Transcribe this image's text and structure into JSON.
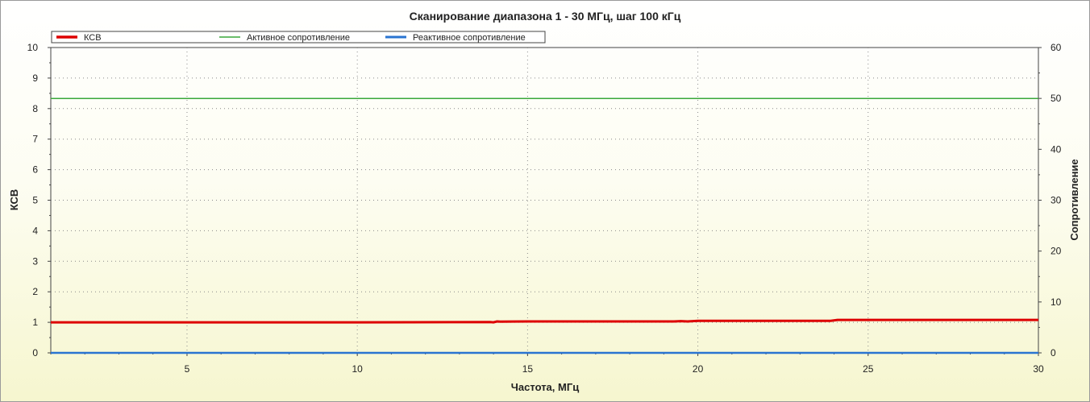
{
  "chart_data": {
    "type": "line",
    "title": "Сканирование диапазона 1 - 30 МГц, шаг 100 кГц",
    "xlabel": "Частота, МГц",
    "ylabel_left": "КСВ",
    "ylabel_right": "Сопротивление",
    "xlim": [
      1,
      30
    ],
    "ylim_left": [
      0,
      10
    ],
    "ylim_right": [
      0,
      60
    ],
    "x_ticks": [
      5,
      10,
      15,
      20,
      25,
      30
    ],
    "y_ticks_left": [
      0,
      1,
      2,
      3,
      4,
      5,
      6,
      7,
      8,
      9,
      10
    ],
    "y_ticks_right": [
      0,
      10,
      20,
      30,
      40,
      50,
      60
    ],
    "grid": true,
    "legend_position": "top",
    "series": [
      {
        "name": "КСВ",
        "axis": "left",
        "color": "#dd0000",
        "x": [
          1,
          5,
          10,
          13.9,
          14.0,
          14.1,
          14.2,
          15,
          19.3,
          19.5,
          19.7,
          20,
          23.9,
          24.1,
          25,
          30
        ],
        "y": [
          1.0,
          1.0,
          1.0,
          1.01,
          1.0,
          1.03,
          1.02,
          1.03,
          1.03,
          1.04,
          1.03,
          1.05,
          1.05,
          1.08,
          1.08,
          1.08
        ]
      },
      {
        "name": "Активное сопротивление",
        "axis": "right",
        "color": "#3aa83a",
        "x": [
          1,
          30
        ],
        "y": [
          50,
          50
        ]
      },
      {
        "name": "Реактивное сопротивление",
        "axis": "right",
        "color": "#2a74d1",
        "x": [
          1,
          30
        ],
        "y": [
          0,
          0
        ]
      }
    ]
  }
}
